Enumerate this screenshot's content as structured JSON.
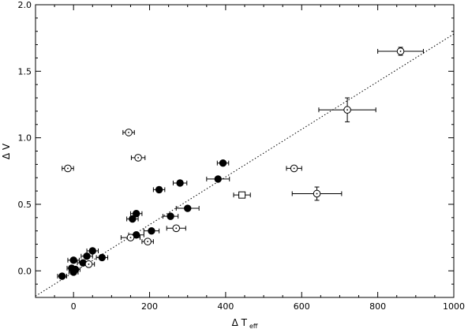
{
  "chart_data": {
    "type": "scatter",
    "title": "",
    "xlabel": "Δ T",
    "xlabel_sub": "eff",
    "ylabel": "Δ V",
    "xlim": [
      -100,
      1000
    ],
    "ylim": [
      -0.2,
      2.0
    ],
    "xticks": [
      0,
      200,
      400,
      600,
      800,
      1000
    ],
    "xtick_labels": [
      "0",
      "200",
      "400",
      "600",
      "800",
      "1000"
    ],
    "yticks": [
      0.0,
      0.5,
      1.0,
      1.5,
      2.0
    ],
    "ytick_labels": [
      "0.0",
      "0.5",
      "1.0",
      "1.5",
      "2.0"
    ],
    "grid": false,
    "fit_line": {
      "style": "dotted",
      "x": [
        -100,
        1000
      ],
      "y": [
        -0.19,
        1.78
      ]
    },
    "series": [
      {
        "marker": "filled-circle",
        "points": [
          {
            "x": -30,
            "y": -0.04,
            "xerr": 12,
            "yerr": 0
          },
          {
            "x": -5,
            "y": 0.02,
            "xerr": 12,
            "yerr": 0
          },
          {
            "x": 0,
            "y": 0.08,
            "xerr": 15,
            "yerr": 0
          },
          {
            "x": 0,
            "y": -0.01,
            "xerr": 12,
            "yerr": 0
          },
          {
            "x": 5,
            "y": 0.01,
            "xerr": 12,
            "yerr": 0
          },
          {
            "x": 25,
            "y": 0.06,
            "xerr": 15,
            "yerr": 0
          },
          {
            "x": 35,
            "y": 0.11,
            "xerr": 15,
            "yerr": 0
          },
          {
            "x": 50,
            "y": 0.15,
            "xerr": 15,
            "yerr": 0
          },
          {
            "x": 75,
            "y": 0.1,
            "xerr": 15,
            "yerr": 0
          },
          {
            "x": 155,
            "y": 0.39,
            "xerr": 15,
            "yerr": 0
          },
          {
            "x": 165,
            "y": 0.43,
            "xerr": 15,
            "yerr": 0
          },
          {
            "x": 165,
            "y": 0.27,
            "xerr": 20,
            "yerr": 0
          },
          {
            "x": 205,
            "y": 0.3,
            "xerr": 20,
            "yerr": 0
          },
          {
            "x": 225,
            "y": 0.61,
            "xerr": 15,
            "yerr": 0.02
          },
          {
            "x": 255,
            "y": 0.41,
            "xerr": 20,
            "yerr": 0
          },
          {
            "x": 280,
            "y": 0.66,
            "xerr": 18,
            "yerr": 0
          },
          {
            "x": 300,
            "y": 0.47,
            "xerr": 30,
            "yerr": 0
          },
          {
            "x": 380,
            "y": 0.69,
            "xerr": 30,
            "yerr": 0
          },
          {
            "x": 393,
            "y": 0.81,
            "xerr": 15,
            "yerr": 0.01
          }
        ]
      },
      {
        "marker": "circle-dot",
        "points": [
          {
            "x": -15,
            "y": 0.77,
            "xerr": 15,
            "yerr": 0
          },
          {
            "x": 40,
            "y": 0.05,
            "xerr": 15,
            "yerr": 0
          },
          {
            "x": 145,
            "y": 1.04,
            "xerr": 15,
            "yerr": 0
          },
          {
            "x": 150,
            "y": 0.25,
            "xerr": 25,
            "yerr": 0
          },
          {
            "x": 170,
            "y": 0.85,
            "xerr": 18,
            "yerr": 0
          },
          {
            "x": 195,
            "y": 0.22,
            "xerr": 15,
            "yerr": 0
          },
          {
            "x": 270,
            "y": 0.32,
            "xerr": 25,
            "yerr": 0
          },
          {
            "x": 580,
            "y": 0.77,
            "xerr": 20,
            "yerr": 0
          },
          {
            "x": 640,
            "y": 0.58,
            "xerr": 65,
            "yerr": 0.05
          },
          {
            "x": 720,
            "y": 1.21,
            "xerr": 75,
            "yerr": 0.09
          },
          {
            "x": 860,
            "y": 1.65,
            "xerr": 60,
            "yerr": 0.03
          }
        ]
      },
      {
        "marker": "open-square",
        "points": [
          {
            "x": 443,
            "y": 0.57,
            "xerr": 22,
            "yerr": 0.02
          }
        ]
      }
    ]
  }
}
